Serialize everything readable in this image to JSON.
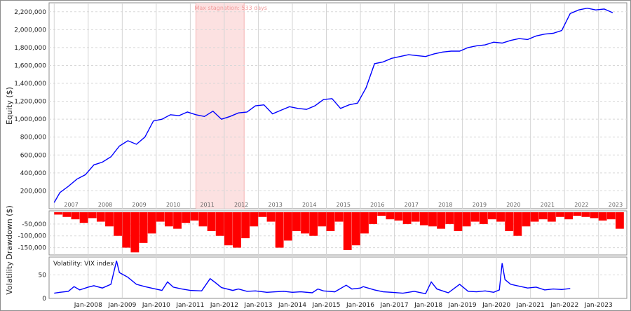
{
  "chart_data": [
    {
      "type": "line",
      "name": "equity",
      "ylabel": "Equity ($)",
      "ylim": [
        0,
        2300000
      ],
      "yticks": [
        "200,000",
        "400,000",
        "600,000",
        "800,000",
        "1,000,000",
        "1,200,000",
        "1,400,000",
        "1,600,000",
        "1,800,000",
        "2,000,000",
        "2,200,000"
      ],
      "ytick_values": [
        200000,
        400000,
        600000,
        800000,
        1000000,
        1200000,
        1400000,
        1600000,
        1800000,
        2000000,
        2200000
      ],
      "year_labels": [
        "2007",
        "2008",
        "2009",
        "2010",
        "2011",
        "2012",
        "2013",
        "2014",
        "2015",
        "2016",
        "2017",
        "2018",
        "2019",
        "2020",
        "2021",
        "2022",
        "2023"
      ],
      "stagnation": {
        "label": "Max stagnation: 533 days",
        "start": "2011-03",
        "end": "2012-08"
      },
      "line_color": "#0000ff",
      "shade_color": "#fbdcdc",
      "x": [
        "2007-01",
        "2007-03",
        "2007-06",
        "2007-09",
        "2007-12",
        "2008-03",
        "2008-06",
        "2008-09",
        "2008-12",
        "2009-03",
        "2009-06",
        "2009-09",
        "2009-12",
        "2010-03",
        "2010-06",
        "2010-09",
        "2010-12",
        "2011-03",
        "2011-06",
        "2011-09",
        "2011-12",
        "2012-03",
        "2012-06",
        "2012-09",
        "2012-12",
        "2013-03",
        "2013-06",
        "2013-09",
        "2013-12",
        "2014-03",
        "2014-06",
        "2014-09",
        "2014-12",
        "2015-03",
        "2015-06",
        "2015-09",
        "2015-12",
        "2016-03",
        "2016-06",
        "2016-09",
        "2016-12",
        "2017-03",
        "2017-06",
        "2017-09",
        "2017-12",
        "2018-03",
        "2018-06",
        "2018-09",
        "2018-12",
        "2019-03",
        "2019-06",
        "2019-09",
        "2019-12",
        "2020-03",
        "2020-06",
        "2020-09",
        "2020-12",
        "2021-03",
        "2021-06",
        "2021-09",
        "2021-12",
        "2022-03",
        "2022-06",
        "2022-09",
        "2022-12",
        "2023-03",
        "2023-06"
      ],
      "y": [
        70000,
        180000,
        250000,
        330000,
        380000,
        490000,
        520000,
        580000,
        700000,
        760000,
        720000,
        800000,
        980000,
        1000000,
        1050000,
        1040000,
        1080000,
        1050000,
        1030000,
        1090000,
        1000000,
        1030000,
        1070000,
        1080000,
        1150000,
        1160000,
        1060000,
        1100000,
        1140000,
        1120000,
        1110000,
        1150000,
        1220000,
        1230000,
        1120000,
        1160000,
        1180000,
        1350000,
        1620000,
        1640000,
        1680000,
        1700000,
        1720000,
        1710000,
        1700000,
        1730000,
        1750000,
        1760000,
        1760000,
        1800000,
        1820000,
        1830000,
        1860000,
        1850000,
        1880000,
        1900000,
        1890000,
        1930000,
        1950000,
        1960000,
        1990000,
        2180000,
        2220000,
        2240000,
        2220000,
        2230000,
        2190000
      ]
    },
    {
      "type": "bar",
      "name": "drawdown",
      "ylabel": "Drawdown ($)",
      "ylim": [
        -175000,
        0
      ],
      "yticks": [
        "-50,000",
        "-100,000",
        "-150,000"
      ],
      "ytick_values": [
        -50000,
        -100000,
        -150000
      ],
      "bar_color": "#ff0000",
      "x": [
        "2007-01",
        "2007-04",
        "2007-07",
        "2007-10",
        "2008-01",
        "2008-04",
        "2008-07",
        "2008-10",
        "2009-01",
        "2009-04",
        "2009-07",
        "2009-10",
        "2010-01",
        "2010-04",
        "2010-07",
        "2010-10",
        "2011-01",
        "2011-04",
        "2011-07",
        "2011-10",
        "2012-01",
        "2012-04",
        "2012-07",
        "2012-10",
        "2013-01",
        "2013-04",
        "2013-07",
        "2013-10",
        "2014-01",
        "2014-04",
        "2014-07",
        "2014-10",
        "2015-01",
        "2015-04",
        "2015-07",
        "2015-10",
        "2016-01",
        "2016-04",
        "2016-07",
        "2016-10",
        "2017-01",
        "2017-04",
        "2017-07",
        "2017-10",
        "2018-01",
        "2018-04",
        "2018-07",
        "2018-10",
        "2019-01",
        "2019-04",
        "2019-07",
        "2019-10",
        "2020-01",
        "2020-04",
        "2020-07",
        "2020-10",
        "2021-01",
        "2021-04",
        "2021-07",
        "2021-10",
        "2022-01",
        "2022-04",
        "2022-07",
        "2022-10",
        "2023-01",
        "2023-04",
        "2023-07"
      ],
      "values": [
        -10000,
        -20000,
        -30000,
        -45000,
        -25000,
        -40000,
        -60000,
        -100000,
        -150000,
        -170000,
        -130000,
        -90000,
        -40000,
        -60000,
        -70000,
        -45000,
        -35000,
        -60000,
        -80000,
        -100000,
        -140000,
        -150000,
        -110000,
        -60000,
        -20000,
        -40000,
        -150000,
        -120000,
        -80000,
        -90000,
        -100000,
        -60000,
        -80000,
        -40000,
        -160000,
        -140000,
        -90000,
        -50000,
        -15000,
        -30000,
        -35000,
        -50000,
        -40000,
        -55000,
        -60000,
        -70000,
        -50000,
        -80000,
        -60000,
        -40000,
        -50000,
        -30000,
        -40000,
        -80000,
        -100000,
        -60000,
        -40000,
        -30000,
        -40000,
        -20000,
        -30000,
        -15000,
        -20000,
        -25000,
        -35000,
        -30000,
        -70000
      ]
    },
    {
      "type": "line",
      "name": "volatility",
      "title": "Volatility: VIX index",
      "ylabel": "Volatility",
      "ylim": [
        0,
        85
      ],
      "yticks": [
        "0",
        "50"
      ],
      "ytick_values": [
        0,
        50
      ],
      "xtick_labels": [
        "Jan-2008",
        "Jan-2009",
        "Jan-2010",
        "Jan-2011",
        "Jan-2012",
        "Jan-2013",
        "Jan-2014",
        "Jan-2015",
        "Jan-2016",
        "Jan-2017",
        "Jan-2018",
        "Jan-2019",
        "Jan-2020",
        "Jan-2021",
        "Jan-2022",
        "Jan-2023"
      ],
      "line_color": "#0000ff",
      "x": [
        "2007-01",
        "2007-03",
        "2007-06",
        "2007-08",
        "2007-10",
        "2008-01",
        "2008-03",
        "2008-06",
        "2008-09",
        "2008-10",
        "2008-11",
        "2008-12",
        "2009-03",
        "2009-06",
        "2009-09",
        "2009-12",
        "2010-03",
        "2010-05",
        "2010-07",
        "2010-10",
        "2011-01",
        "2011-05",
        "2011-08",
        "2011-10",
        "2011-12",
        "2012-04",
        "2012-06",
        "2012-09",
        "2012-12",
        "2013-04",
        "2013-07",
        "2013-10",
        "2014-01",
        "2014-04",
        "2014-08",
        "2014-10",
        "2014-12",
        "2015-04",
        "2015-08",
        "2015-10",
        "2016-01",
        "2016-02",
        "2016-06",
        "2016-09",
        "2016-12",
        "2017-04",
        "2017-08",
        "2017-12",
        "2018-02",
        "2018-04",
        "2018-08",
        "2018-12",
        "2019-03",
        "2019-06",
        "2019-09",
        "2019-12",
        "2020-02",
        "2020-03",
        "2020-04",
        "2020-06",
        "2020-09",
        "2020-12",
        "2021-03",
        "2021-06",
        "2021-09",
        "2021-12",
        "2022-03"
      ],
      "y": [
        11,
        13,
        15,
        25,
        18,
        24,
        27,
        22,
        30,
        55,
        80,
        55,
        45,
        30,
        25,
        21,
        17,
        35,
        24,
        20,
        17,
        16,
        42,
        33,
        23,
        17,
        20,
        15,
        16,
        13,
        14,
        15,
        13,
        14,
        12,
        20,
        16,
        14,
        28,
        20,
        22,
        25,
        18,
        14,
        13,
        11,
        15,
        10,
        35,
        20,
        12,
        30,
        15,
        14,
        16,
        13,
        18,
        75,
        40,
        30,
        26,
        22,
        24,
        18,
        20,
        19,
        21
      ]
    }
  ]
}
